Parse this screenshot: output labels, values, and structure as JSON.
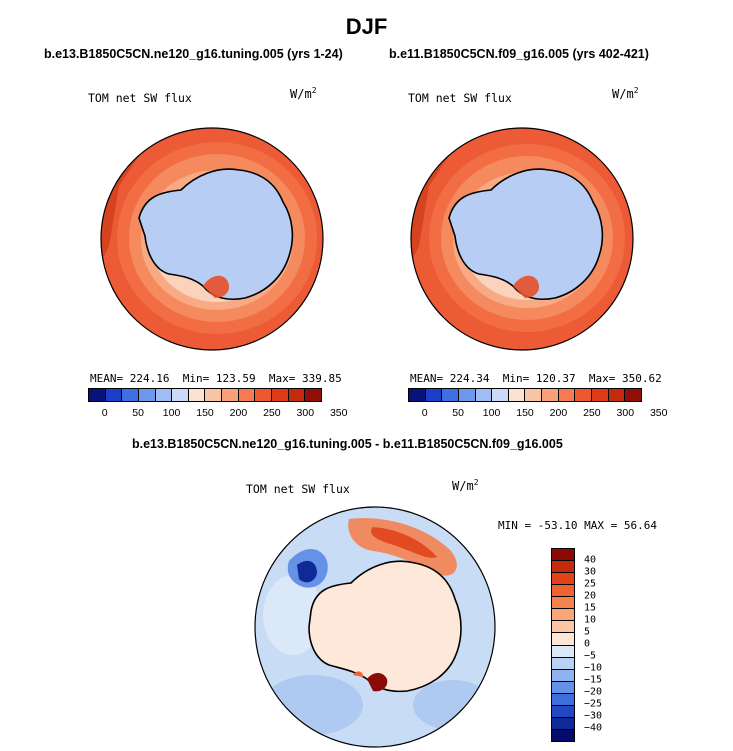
{
  "title": "DJF",
  "panels": [
    {
      "case": "b.e13.B1850C5CN.ne120_g16.tuning.005 (yrs 1-24)",
      "variable": "TOM net SW flux",
      "units": "W/m",
      "units_exp": "2",
      "stats": {
        "mean_label": "MEAN=",
        "mean": "224.16",
        "min_label": "Min=",
        "min": "123.59",
        "max_label": "Max=",
        "max": "339.85"
      }
    },
    {
      "case": "b.e11.B1850C5CN.f09_g16.005 (yrs 402-421)",
      "variable": "TOM net SW flux",
      "units": "W/m",
      "units_exp": "2",
      "stats": {
        "mean_label": "MEAN=",
        "mean": "224.34",
        "min_label": "Min=",
        "min": "120.37",
        "max_label": "Max=",
        "max": "350.62"
      }
    }
  ],
  "abs_colorbar": {
    "labels": [
      "0",
      "50",
      "100",
      "150",
      "200",
      "250",
      "300",
      "350"
    ],
    "colors": [
      "#08127a",
      "#1b3fc8",
      "#3f6fe0",
      "#6e98ee",
      "#9fbcf4",
      "#c9daf8",
      "#fbe2d2",
      "#f9c3a4",
      "#f7a07a",
      "#f47b54",
      "#ec5832",
      "#de3a18",
      "#c42a0e",
      "#8e1006"
    ]
  },
  "diff": {
    "title": "b.e13.B1850C5CN.ne120_g16.tuning.005 - b.e11.B1850C5CN.f09_g16.005",
    "variable": "TOM net SW flux",
    "units": "W/m",
    "units_exp": "2",
    "minmax": "MIN = -53.10 MAX =  56.64",
    "colorbar_labels": [
      "40",
      "30",
      "25",
      "20",
      "15",
      "10",
      "5",
      "0",
      "−5",
      "−10",
      "−15",
      "−20",
      "−25",
      "−30",
      "−40"
    ],
    "colorbar_colors": [
      "#8c0a05",
      "#c32a0e",
      "#e24218",
      "#ef6332",
      "#f4844e",
      "#f8a678",
      "#fbc6a6",
      "#fde6d6",
      "#dce9f8",
      "#b9d1f4",
      "#8fb3ee",
      "#6591e6",
      "#3e6ddc",
      "#2148c2",
      "#0d2a96",
      "#030c6a"
    ]
  },
  "colors": {
    "ocean_main": "#ec5a36",
    "ice": "#b7cdf4",
    "diff_bg": "#c8dcf6",
    "land_diff": "#fde8da"
  }
}
